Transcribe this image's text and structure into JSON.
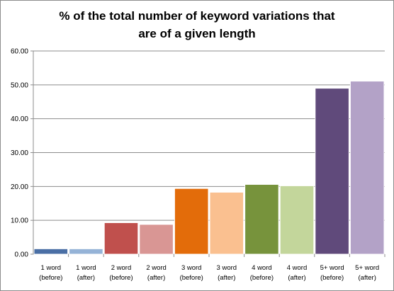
{
  "chart_data": {
    "type": "bar",
    "title": [
      "% of the total number of keyword variations that",
      "are of a given length"
    ],
    "xlabel": "",
    "ylabel": "",
    "ylim": [
      0,
      60
    ],
    "yticks": [
      "0.00",
      "10.00",
      "20.00",
      "30.00",
      "40.00",
      "50.00",
      "60.00"
    ],
    "grid": true,
    "legend": "none",
    "categories": [
      [
        "1 word",
        "(before)"
      ],
      [
        "1 word",
        "(after)"
      ],
      [
        "2 word",
        "(before)"
      ],
      [
        "2 word",
        "(after)"
      ],
      [
        "3 word",
        "(before)"
      ],
      [
        "3 word",
        "(after)"
      ],
      [
        "4 word",
        "(before)"
      ],
      [
        "4 word",
        "(after)"
      ],
      [
        "5+ word",
        "(before)"
      ],
      [
        "5+ word",
        "(after)"
      ]
    ],
    "values": [
      1.6,
      1.6,
      9.3,
      8.8,
      19.4,
      18.3,
      20.6,
      20.2,
      49.0,
      51.1
    ],
    "colors": [
      "#4a6fa5",
      "#95b3d7",
      "#c0504d",
      "#d99694",
      "#e36c0a",
      "#fac090",
      "#77933c",
      "#c3d69b",
      "#604a7b",
      "#b3a2c7"
    ]
  }
}
